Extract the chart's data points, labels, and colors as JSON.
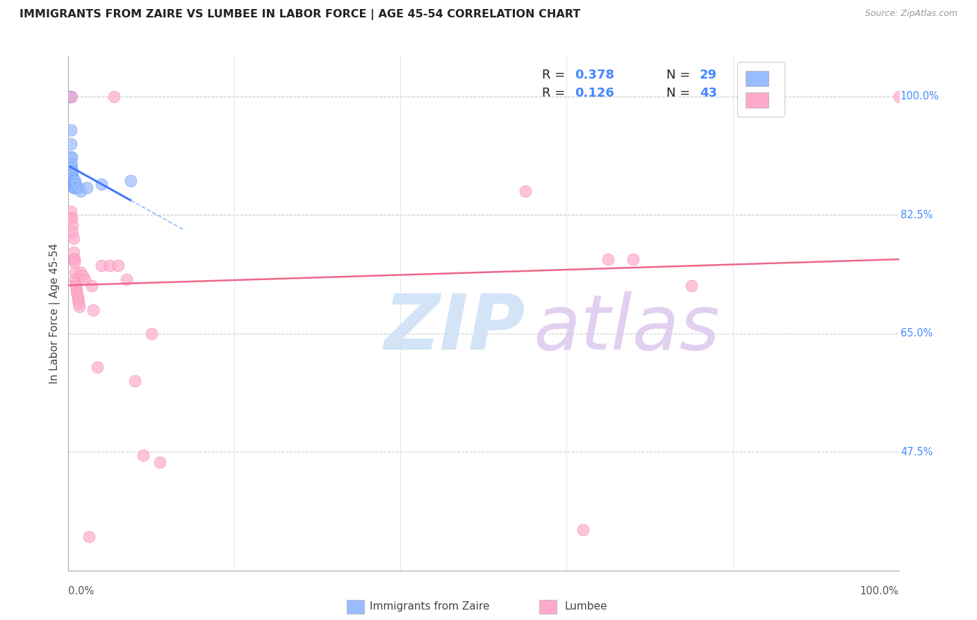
{
  "title": "IMMIGRANTS FROM ZAIRE VS LUMBEE IN LABOR FORCE | AGE 45-54 CORRELATION CHART",
  "source": "Source: ZipAtlas.com",
  "ylabel": "In Labor Force | Age 45-54",
  "xlim": [
    0.0,
    1.0
  ],
  "ylim": [
    0.3,
    1.06
  ],
  "blue_color": "#99bbff",
  "blue_edge": "#6699ee",
  "pink_color": "#ffaacc",
  "pink_edge": "#ee88aa",
  "trendline_blue": "#4477ff",
  "trendline_blue_dash": "#99bbff",
  "trendline_pink": "#ee6688",
  "watermark_zip_color": "#cce0f5",
  "watermark_atlas_color": "#ddc8ee",
  "background_color": "#ffffff",
  "grid_color": "#cccccc",
  "y_tick_positions": [
    1.0,
    0.825,
    0.65,
    0.475
  ],
  "y_tick_labels": [
    "100.0%",
    "82.5%",
    "65.0%",
    "47.5%"
  ],
  "x_tick_positions": [
    0.0,
    1.0
  ],
  "x_tick_labels": [
    "0.0%",
    "100.0%"
  ],
  "legend_r1": "R = 0.378",
  "legend_n1": "N = 29",
  "legend_r2": "R = 0.126",
  "legend_n2": "N = 43",
  "bottom_label1": "Immigrants from Zaire",
  "bottom_label2": "Lumbee",
  "blue_scatter_x": [
    0.002,
    0.002,
    0.003,
    0.003,
    0.003,
    0.004,
    0.004,
    0.004,
    0.004,
    0.004,
    0.004,
    0.005,
    0.005,
    0.005,
    0.005,
    0.005,
    0.006,
    0.006,
    0.006,
    0.007,
    0.007,
    0.008,
    0.008,
    0.009,
    0.012,
    0.015,
    0.022,
    0.04,
    0.075
  ],
  "blue_scatter_y": [
    1.0,
    1.0,
    0.95,
    0.93,
    0.91,
    0.91,
    0.9,
    0.895,
    0.89,
    0.89,
    0.885,
    0.885,
    0.88,
    0.88,
    0.875,
    0.87,
    0.875,
    0.87,
    0.865,
    0.87,
    0.865,
    0.875,
    0.87,
    0.865,
    0.865,
    0.86,
    0.865,
    0.87,
    0.875
  ],
  "pink_scatter_x": [
    0.003,
    0.003,
    0.004,
    0.004,
    0.005,
    0.005,
    0.006,
    0.006,
    0.006,
    0.007,
    0.007,
    0.008,
    0.008,
    0.009,
    0.009,
    0.01,
    0.01,
    0.011,
    0.011,
    0.012,
    0.013,
    0.015,
    0.017,
    0.02,
    0.025,
    0.028,
    0.03,
    0.035,
    0.04,
    0.05,
    0.055,
    0.06,
    0.07,
    0.08,
    0.09,
    0.1,
    0.11,
    0.55,
    0.62,
    0.65,
    0.68,
    0.75,
    1.0
  ],
  "pink_scatter_y": [
    0.83,
    0.82,
    1.0,
    0.82,
    0.81,
    0.8,
    0.79,
    0.77,
    0.76,
    0.76,
    0.755,
    0.74,
    0.73,
    0.725,
    0.72,
    0.715,
    0.71,
    0.705,
    0.7,
    0.695,
    0.69,
    0.74,
    0.735,
    0.73,
    0.35,
    0.72,
    0.685,
    0.6,
    0.75,
    0.75,
    1.0,
    0.75,
    0.73,
    0.58,
    0.47,
    0.65,
    0.46,
    0.86,
    0.36,
    0.76,
    0.76,
    0.72,
    1.0
  ]
}
